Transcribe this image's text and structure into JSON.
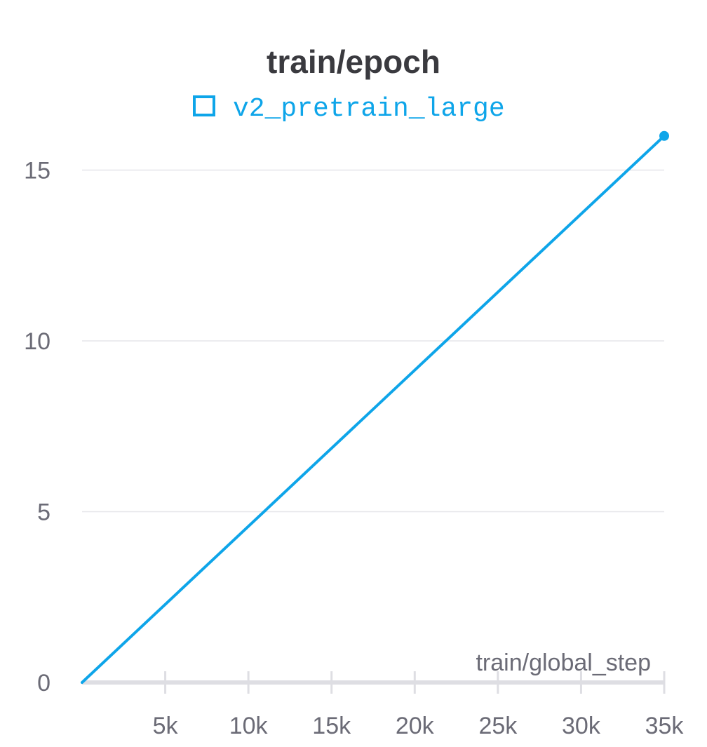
{
  "chart_data": {
    "type": "line",
    "title": "train/epoch",
    "xlabel": "train/global_step",
    "ylabel": "",
    "xlim": [
      0,
      35000
    ],
    "ylim": [
      0,
      16.5
    ],
    "x_ticks": [
      5000,
      10000,
      15000,
      20000,
      25000,
      30000,
      35000
    ],
    "x_tick_labels": [
      "5k",
      "10k",
      "15k",
      "20k",
      "25k",
      "30k",
      "35k"
    ],
    "y_ticks": [
      0,
      5,
      10,
      15
    ],
    "y_tick_labels": [
      "0",
      "5",
      "10",
      "15"
    ],
    "grid": true,
    "legend_position": "top",
    "series": [
      {
        "name": "v2_pretrain_large",
        "color": "#0ea5e9",
        "x": [
          0,
          35000
        ],
        "y": [
          0,
          16
        ]
      }
    ]
  }
}
